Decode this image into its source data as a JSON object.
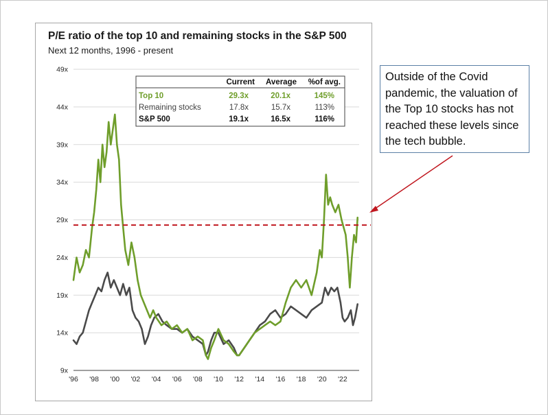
{
  "slide": {
    "callout_text": "Outside of the Covid pandemic, the valuation of the Top 10 stocks has not reached these levels since the tech bubble."
  },
  "chart_data": {
    "type": "line",
    "title": "P/E ratio of the top 10 and remaining stocks in the S&P 500",
    "subtitle": "Next 12 months, 1996 - present",
    "xlabel": "",
    "ylabel": "",
    "xlim": [
      1996,
      2023.6
    ],
    "ylim": [
      9,
      49
    ],
    "x_tick_values": [
      1996,
      1998,
      2000,
      2002,
      2004,
      2006,
      2008,
      2010,
      2012,
      2014,
      2016,
      2018,
      2020,
      2022
    ],
    "x_tick_labels": [
      "'96",
      "'98",
      "'00",
      "'02",
      "'04",
      "'06",
      "'08",
      "'10",
      "'12",
      "'14",
      "'16",
      "'18",
      "'20",
      "'22"
    ],
    "y_tick_values": [
      9,
      14,
      19,
      24,
      29,
      34,
      39,
      44,
      49
    ],
    "y_tick_labels": [
      "9x",
      "14x",
      "19x",
      "24x",
      "29x",
      "34x",
      "39x",
      "44x",
      "49x"
    ],
    "grid": true,
    "legend": "none",
    "reference_line": {
      "y": 28.3,
      "color": "#c0171f",
      "style": "dashed"
    },
    "series": [
      {
        "color": "#6f9e2b",
        "x": [
          1996.0,
          1996.3,
          1996.6,
          1996.9,
          1997.2,
          1997.5,
          1997.8,
          1998.0,
          1998.2,
          1998.4,
          1998.6,
          1998.8,
          1999.0,
          1999.2,
          1999.4,
          1999.6,
          1999.8,
          2000.0,
          2000.2,
          2000.4,
          2000.6,
          2000.8,
          2001.0,
          2001.3,
          2001.6,
          2001.9,
          2002.2,
          2002.5,
          2002.8,
          2003.1,
          2003.4,
          2003.7,
          2004.0,
          2004.5,
          2005.0,
          2005.5,
          2006.0,
          2006.5,
          2007.0,
          2007.5,
          2008.0,
          2008.5,
          2008.8,
          2009.0,
          2009.3,
          2009.6,
          2010.0,
          2010.5,
          2011.0,
          2011.5,
          2011.8,
          2012.0,
          2012.5,
          2013.0,
          2013.5,
          2014.0,
          2014.5,
          2015.0,
          2015.5,
          2016.0,
          2016.5,
          2017.0,
          2017.5,
          2018.0,
          2018.5,
          2019.0,
          2019.5,
          2019.8,
          2020.0,
          2020.2,
          2020.4,
          2020.6,
          2020.8,
          2021.0,
          2021.3,
          2021.6,
          2021.9,
          2022.1,
          2022.3,
          2022.5,
          2022.7,
          2022.9,
          2023.1,
          2023.3,
          2023.45
        ],
        "values": [
          21,
          24,
          22,
          23,
          25,
          24,
          28,
          30,
          33,
          37,
          34,
          39,
          36,
          38,
          42,
          39,
          41,
          43,
          39,
          37,
          31,
          28,
          25,
          23,
          26,
          24,
          21,
          19,
          18,
          17,
          16,
          17,
          16,
          15,
          15.5,
          14.5,
          15,
          14,
          14.5,
          13,
          13.5,
          13,
          11,
          10.5,
          12,
          13,
          14.5,
          13,
          12.5,
          11.5,
          11,
          11,
          12,
          13,
          14,
          14.5,
          15,
          15.5,
          15,
          15.5,
          18,
          20,
          21,
          20,
          21,
          19,
          22,
          25,
          24,
          29,
          35,
          31,
          32,
          31,
          30,
          31,
          29,
          28,
          27,
          24,
          20,
          24,
          27,
          26,
          29.3
        ]
      },
      {
        "color": "#4a4a4a",
        "x": [
          1996.0,
          1996.3,
          1996.6,
          1996.9,
          1997.2,
          1997.5,
          1997.8,
          1998.1,
          1998.4,
          1998.7,
          1999.0,
          1999.3,
          1999.6,
          1999.9,
          2000.2,
          2000.5,
          2000.8,
          2001.1,
          2001.4,
          2001.7,
          2002.0,
          2002.3,
          2002.6,
          2002.9,
          2003.2,
          2003.5,
          2003.8,
          2004.2,
          2004.6,
          2005.0,
          2005.5,
          2006.0,
          2006.5,
          2007.0,
          2007.5,
          2008.0,
          2008.5,
          2008.8,
          2009.0,
          2009.3,
          2009.6,
          2010.0,
          2010.5,
          2011.0,
          2011.5,
          2011.8,
          2012.0,
          2012.5,
          2013.0,
          2013.5,
          2014.0,
          2014.5,
          2015.0,
          2015.5,
          2016.0,
          2016.5,
          2017.0,
          2017.5,
          2018.0,
          2018.5,
          2019.0,
          2019.5,
          2020.0,
          2020.3,
          2020.6,
          2020.9,
          2021.2,
          2021.5,
          2021.8,
          2022.0,
          2022.2,
          2022.5,
          2022.8,
          2023.0,
          2023.2,
          2023.45
        ],
        "values": [
          13,
          12.5,
          13.5,
          14,
          15.5,
          17,
          18,
          19,
          20,
          19.5,
          21,
          22,
          20,
          21,
          20,
          19,
          20.5,
          19,
          20,
          17,
          16,
          15.5,
          14.5,
          12.5,
          13.5,
          15,
          16,
          16.5,
          15.5,
          15,
          14.5,
          14.5,
          14,
          14.5,
          13.5,
          13,
          12.5,
          11,
          11.5,
          13,
          14,
          14,
          12.5,
          13,
          12,
          11,
          11,
          12,
          13,
          14,
          15,
          15.5,
          16.5,
          17,
          16,
          16.5,
          17.5,
          17,
          16.5,
          16,
          17,
          17.5,
          18,
          20,
          19,
          20,
          19.5,
          20,
          18,
          16,
          15.5,
          16,
          17,
          15,
          16,
          17.8
        ]
      }
    ],
    "table": {
      "headers": [
        "",
        "Current",
        "Average",
        "%of avg."
      ],
      "rows": [
        {
          "label": "Top 10",
          "current": "29.3x",
          "average": "20.1x",
          "pct": "145%",
          "color": "#6f9e2b",
          "bold": true
        },
        {
          "label": "Remaining stocks",
          "current": "17.8x",
          "average": "15.7x",
          "pct": "113%",
          "color": "#404040",
          "bold": false
        },
        {
          "label": "S&P 500",
          "current": "19.1x",
          "average": "16.5x",
          "pct": "116%",
          "color": "#111111",
          "bold": true
        }
      ]
    }
  }
}
